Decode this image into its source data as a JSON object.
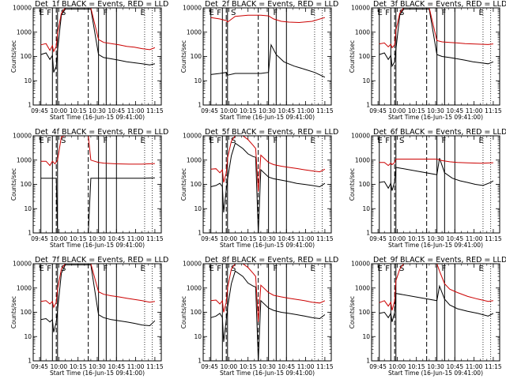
{
  "chart_data": [
    {
      "type": "line",
      "title": "Det_1f BLACK = Events, RED = LLD",
      "xlabel": "Start Time (16-Jun-15 09:41:00)",
      "ylabel": "Counts/sec",
      "x_ticks": [
        "09:45",
        "10:00",
        "10:15",
        "10:30",
        "10:45",
        "11:00",
        "11:15"
      ],
      "x_range": [
        -5,
        95
      ],
      "y_scale": "log",
      "ylim": [
        1,
        10000
      ],
      "y_ticks": [
        "1",
        "10",
        "100",
        "1000",
        "10000"
      ],
      "segments": [
        "E",
        "F",
        "S",
        "F",
        "E"
      ],
      "series": [
        {
          "color": "#000000",
          "x": [
            1,
            5,
            8,
            10,
            11,
            13,
            14,
            17,
            20,
            26,
            30,
            36,
            38,
            40,
            46,
            50,
            56,
            62,
            68,
            74,
            80,
            86,
            90
          ],
          "y": [
            120,
            140,
            75,
            110,
            22,
            40,
            180,
            5000,
            9000,
            9000,
            9000,
            9000,
            9000,
            9000,
            120,
            90,
            80,
            70,
            60,
            55,
            50,
            45,
            50
          ]
        },
        {
          "color": "#cc0000",
          "x": [
            1,
            5,
            8,
            10,
            11,
            13,
            14,
            17,
            20,
            26,
            30,
            36,
            38,
            40,
            46,
            50,
            56,
            62,
            68,
            74,
            80,
            86,
            90
          ],
          "y": [
            300,
            340,
            180,
            280,
            160,
            260,
            900,
            6000,
            10000,
            10000,
            10000,
            10000,
            10000,
            10000,
            500,
            380,
            340,
            300,
            260,
            240,
            210,
            190,
            230
          ]
        }
      ]
    },
    {
      "type": "line",
      "title": "Det_2f BLACK = Events, RED = LLD",
      "xlabel": "Start Time (16-Jun-15 09:41:00)",
      "ylabel": "Counts/sec",
      "x_ticks": [
        "09:45",
        "10:00",
        "10:15",
        "10:30",
        "10:45",
        "11:00",
        "11:15"
      ],
      "x_range": [
        -5,
        95
      ],
      "y_scale": "log",
      "ylim": [
        1,
        10000
      ],
      "y_ticks": [
        "1",
        "10",
        "100",
        "1000",
        "10000"
      ],
      "segments": [
        "E",
        "F",
        "S",
        "F",
        "E"
      ],
      "series": [
        {
          "color": "#000000",
          "x": [
            1,
            8,
            13,
            14,
            20,
            30,
            40,
            46,
            48,
            52,
            58,
            66,
            74,
            82,
            90
          ],
          "y": [
            18,
            20,
            22,
            17,
            20,
            20,
            20,
            22,
            300,
            120,
            60,
            40,
            30,
            22,
            14
          ]
        },
        {
          "color": "#cc0000",
          "x": [
            1,
            8,
            13,
            14,
            20,
            30,
            40,
            46,
            50,
            56,
            62,
            70,
            80,
            90
          ],
          "y": [
            4000,
            3500,
            3000,
            2600,
            4500,
            5000,
            5000,
            4700,
            3500,
            2800,
            2600,
            2500,
            2800,
            4000
          ]
        }
      ]
    },
    {
      "type": "line",
      "title": "Det_3f BLACK = Events, RED = LLD",
      "xlabel": "Start Time (16-Jun-15 09:41:00)",
      "ylabel": "Counts/sec",
      "x_ticks": [
        "09:45",
        "10:00",
        "10:15",
        "10:30",
        "10:45",
        "11:00",
        "11:15"
      ],
      "x_range": [
        -5,
        95
      ],
      "y_scale": "log",
      "ylim": [
        1,
        10000
      ],
      "y_ticks": [
        "1",
        "10",
        "100",
        "1000",
        "10000"
      ],
      "segments": [
        "E",
        "F",
        "S",
        "F",
        "E"
      ],
      "series": [
        {
          "color": "#000000",
          "x": [
            1,
            5,
            8,
            10,
            11,
            13,
            14,
            17,
            20,
            26,
            30,
            36,
            38,
            40,
            46,
            50,
            56,
            62,
            68,
            74,
            80,
            86,
            90
          ],
          "y": [
            120,
            140,
            75,
            110,
            40,
            60,
            200,
            5000,
            9000,
            9000,
            9000,
            9000,
            9000,
            9000,
            120,
            100,
            90,
            80,
            70,
            60,
            55,
            50,
            60
          ]
        },
        {
          "color": "#cc0000",
          "x": [
            1,
            5,
            8,
            10,
            11,
            13,
            14,
            17,
            20,
            26,
            30,
            36,
            38,
            40,
            46,
            50,
            56,
            62,
            68,
            74,
            80,
            86,
            90
          ],
          "y": [
            330,
            360,
            250,
            320,
            230,
            300,
            1200,
            6000,
            10000,
            10000,
            10000,
            10000,
            10000,
            10000,
            450,
            400,
            380,
            360,
            340,
            330,
            320,
            310,
            330
          ]
        }
      ]
    },
    {
      "type": "line",
      "title": "Det_4f BLACK = Events, RED = LLD",
      "xlabel": "Start Time (16-Jun-15 09:41:00)",
      "ylabel": "Counts/sec",
      "x_ticks": [
        "09:45",
        "10:00",
        "10:15",
        "10:30",
        "10:45",
        "11:00",
        "11:15"
      ],
      "x_range": [
        -5,
        95
      ],
      "y_scale": "log",
      "ylim": [
        1,
        10000
      ],
      "y_ticks": [
        "1",
        "10",
        "100",
        "1000",
        "10000"
      ],
      "segments": [
        "E",
        "F",
        "S",
        "F",
        "E"
      ],
      "series": [
        {
          "color": "#000000",
          "x": [
            1,
            5,
            10,
            12,
            13,
            14,
            20,
            30,
            36,
            38,
            40,
            50,
            60,
            70,
            80,
            90
          ],
          "y": [
            180,
            180,
            180,
            180,
            180,
            1,
            1,
            1,
            1,
            1,
            180,
            180,
            180,
            180,
            180,
            185
          ]
        },
        {
          "color": "#cc0000",
          "x": [
            1,
            5,
            8,
            10,
            12,
            14,
            17,
            20,
            30,
            36,
            38,
            40,
            46,
            50,
            60,
            70,
            80,
            90
          ],
          "y": [
            900,
            900,
            600,
            900,
            700,
            1000,
            9000,
            10000,
            10000,
            10000,
            10000,
            1000,
            800,
            750,
            700,
            680,
            680,
            720
          ]
        }
      ]
    },
    {
      "type": "line",
      "title": "Det_5f BLACK = Events, RED = LLD",
      "xlabel": "Start Time (16-Jun-15 09:41:00)",
      "ylabel": "Counts/sec",
      "x_ticks": [
        "09:45",
        "10:00",
        "10:15",
        "10:30",
        "10:45",
        "11:00",
        "11:15"
      ],
      "x_range": [
        -5,
        95
      ],
      "y_scale": "log",
      "ylim": [
        1,
        10000
      ],
      "y_ticks": [
        "1",
        "10",
        "100",
        "1000",
        "10000"
      ],
      "segments": [
        "E",
        "F",
        "S",
        "F",
        "E"
      ],
      "series": [
        {
          "color": "#000000",
          "x": [
            1,
            5,
            8,
            10,
            11,
            13,
            14,
            17,
            20,
            26,
            30,
            34,
            36,
            38,
            40,
            46,
            50,
            56,
            62,
            68,
            74,
            80,
            86,
            90
          ],
          "y": [
            80,
            90,
            110,
            80,
            7,
            60,
            160,
            1500,
            5000,
            3000,
            1800,
            1400,
            1300,
            1,
            400,
            200,
            170,
            150,
            130,
            110,
            100,
            90,
            80,
            110
          ]
        },
        {
          "color": "#cc0000",
          "x": [
            1,
            5,
            8,
            10,
            11,
            13,
            14,
            17,
            20,
            26,
            30,
            34,
            36,
            38,
            40,
            46,
            50,
            56,
            62,
            68,
            74,
            80,
            86,
            90
          ],
          "y": [
            420,
            440,
            300,
            400,
            120,
            300,
            1200,
            6000,
            10000,
            10000,
            7000,
            4000,
            3000,
            50,
            1600,
            800,
            650,
            560,
            500,
            450,
            400,
            360,
            330,
            420
          ]
        }
      ]
    },
    {
      "type": "line",
      "title": "Det_6f BLACK = Events, RED = LLD",
      "xlabel": "Start Time (16-Jun-15 09:41:00)",
      "ylabel": "Counts/sec",
      "x_ticks": [
        "09:45",
        "10:00",
        "10:15",
        "10:30",
        "10:45",
        "11:00",
        "11:15"
      ],
      "x_range": [
        -5,
        95
      ],
      "y_scale": "log",
      "ylim": [
        1,
        10000
      ],
      "y_ticks": [
        "1",
        "10",
        "100",
        "1000",
        "10000"
      ],
      "segments": [
        "E",
        "F",
        "S",
        "F",
        "E"
      ],
      "series": [
        {
          "color": "#000000",
          "x": [
            1,
            5,
            8,
            10,
            11,
            13,
            14,
            46,
            48,
            52,
            58,
            64,
            70,
            76,
            82,
            88,
            90
          ],
          "y": [
            120,
            130,
            70,
            110,
            55,
            130,
            500,
            250,
            1200,
            300,
            180,
            140,
            120,
            100,
            90,
            120,
            140
          ]
        },
        {
          "color": "#cc0000",
          "x": [
            1,
            5,
            8,
            10,
            11,
            13,
            14,
            20,
            30,
            40,
            46,
            50,
            56,
            62,
            70,
            80,
            90
          ],
          "y": [
            800,
            800,
            600,
            750,
            650,
            800,
            1100,
            1100,
            1100,
            1100,
            1100,
            950,
            850,
            800,
            770,
            740,
            780
          ]
        }
      ]
    },
    {
      "type": "line",
      "title": "Det_7f BLACK = Events, RED = LLD",
      "xlabel": "Start Time (16-Jun-15 09:41:00)",
      "ylabel": "Counts/sec",
      "x_ticks": [
        "09:45",
        "10:00",
        "10:15",
        "10:30",
        "10:45",
        "11:00",
        "11:15"
      ],
      "x_range": [
        -5,
        95
      ],
      "y_scale": "log",
      "ylim": [
        1,
        10000
      ],
      "y_ticks": [
        "1",
        "10",
        "100",
        "1000",
        "10000"
      ],
      "segments": [
        "E",
        "F",
        "S",
        "F",
        "E"
      ],
      "series": [
        {
          "color": "#000000",
          "x": [
            1,
            5,
            8,
            10,
            11,
            13,
            14,
            17,
            20,
            26,
            30,
            36,
            38,
            40,
            46,
            50,
            56,
            62,
            68,
            74,
            80,
            86,
            90
          ],
          "y": [
            50,
            55,
            40,
            50,
            15,
            40,
            120,
            4000,
            9000,
            9000,
            9000,
            9000,
            9000,
            9000,
            80,
            60,
            50,
            45,
            40,
            35,
            30,
            28,
            45
          ]
        },
        {
          "color": "#cc0000",
          "x": [
            1,
            5,
            8,
            10,
            11,
            13,
            14,
            17,
            20,
            26,
            30,
            36,
            38,
            40,
            46,
            50,
            56,
            62,
            68,
            74,
            80,
            86,
            90
          ],
          "y": [
            280,
            300,
            220,
            280,
            160,
            260,
            900,
            6000,
            10000,
            10000,
            10000,
            10000,
            10000,
            10000,
            700,
            550,
            480,
            430,
            380,
            340,
            300,
            260,
            280
          ]
        }
      ]
    },
    {
      "type": "line",
      "title": "Det_8f BLACK = Events, RED = LLD",
      "xlabel": "Start Time (16-Jun-15 09:41:00)",
      "ylabel": "Counts/sec",
      "x_ticks": [
        "09:45",
        "10:00",
        "10:15",
        "10:30",
        "10:45",
        "11:00",
        "11:15"
      ],
      "x_range": [
        -5,
        95
      ],
      "y_scale": "log",
      "ylim": [
        1,
        10000
      ],
      "y_ticks": [
        "1",
        "10",
        "100",
        "1000",
        "10000"
      ],
      "segments": [
        "E",
        "F",
        "S",
        "F",
        "E"
      ],
      "series": [
        {
          "color": "#000000",
          "x": [
            1,
            5,
            8,
            10,
            11,
            13,
            14,
            17,
            20,
            26,
            30,
            34,
            36,
            38,
            40,
            46,
            50,
            56,
            62,
            68,
            74,
            80,
            86,
            90
          ],
          "y": [
            60,
            70,
            90,
            60,
            6,
            50,
            150,
            1500,
            5000,
            3000,
            1600,
            1200,
            1100,
            1,
            300,
            150,
            120,
            100,
            90,
            80,
            70,
            60,
            55,
            80
          ]
        },
        {
          "color": "#cc0000",
          "x": [
            1,
            5,
            8,
            10,
            11,
            13,
            14,
            17,
            20,
            26,
            30,
            34,
            36,
            38,
            40,
            46,
            50,
            56,
            62,
            68,
            74,
            80,
            86,
            90
          ],
          "y": [
            300,
            320,
            220,
            300,
            100,
            260,
            1000,
            6000,
            10000,
            10000,
            7000,
            4000,
            3000,
            40,
            1300,
            650,
            500,
            430,
            380,
            340,
            300,
            260,
            240,
            300
          ]
        }
      ]
    },
    {
      "type": "line",
      "title": "Det_9f BLACK = Events, RED = LLD",
      "xlabel": "Start Time (16-Jun-15 09:41:00)",
      "ylabel": "Counts/sec",
      "x_ticks": [
        "09:45",
        "10:00",
        "10:15",
        "10:30",
        "10:45",
        "11:00",
        "11:15"
      ],
      "x_range": [
        -5,
        95
      ],
      "y_scale": "log",
      "ylim": [
        1,
        10000
      ],
      "y_ticks": [
        "1",
        "10",
        "100",
        "1000",
        "10000"
      ],
      "segments": [
        "E",
        "F",
        "S",
        "F",
        "E"
      ],
      "series": [
        {
          "color": "#000000",
          "x": [
            1,
            5,
            8,
            10,
            11,
            13,
            14,
            46,
            48,
            52,
            56,
            62,
            70,
            78,
            86,
            90
          ],
          "y": [
            90,
            100,
            60,
            90,
            40,
            100,
            600,
            300,
            1200,
            350,
            200,
            140,
            110,
            90,
            70,
            90
          ]
        },
        {
          "color": "#cc0000",
          "x": [
            1,
            5,
            8,
            10,
            11,
            13,
            14,
            17,
            20,
            46,
            48,
            52,
            56,
            62,
            70,
            78,
            86,
            90
          ],
          "y": [
            250,
            300,
            180,
            260,
            120,
            300,
            2000,
            6000,
            10000,
            10000,
            5000,
            1500,
            900,
            650,
            450,
            350,
            280,
            300
          ]
        }
      ]
    }
  ]
}
